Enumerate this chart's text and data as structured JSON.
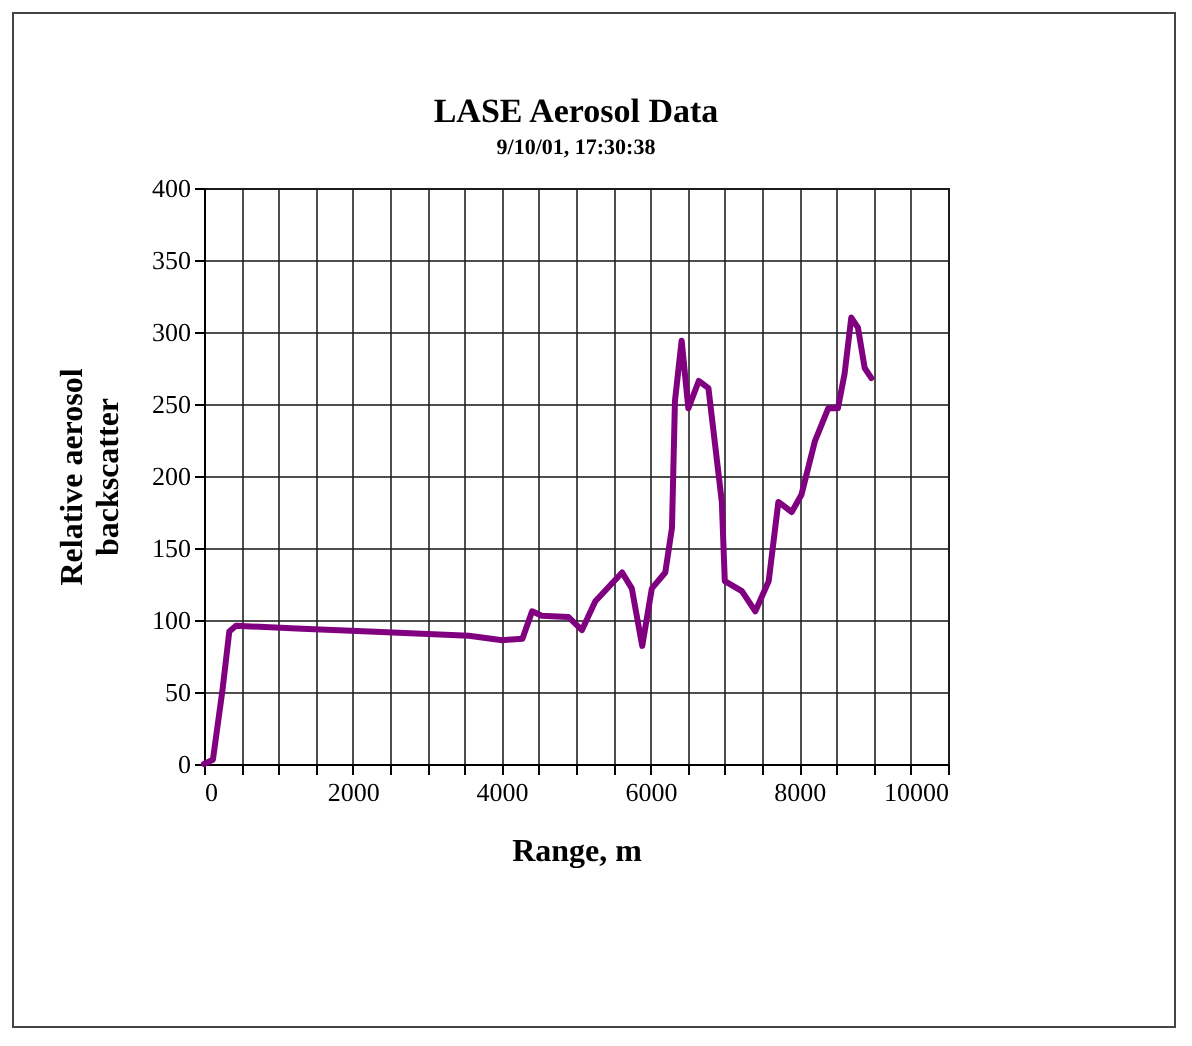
{
  "chart_data": {
    "type": "line",
    "title": "LASE Aerosol Data",
    "subtitle": "9/10/01, 17:30:38",
    "xlabel": "Range, m",
    "ylabel": "Relative aerosol backscatter",
    "x": [
      0,
      120,
      250,
      340,
      430,
      1320,
      2220,
      3560,
      4010,
      4280,
      4410,
      4540,
      4900,
      5080,
      5260,
      5620,
      5750,
      5890,
      6020,
      6200,
      6290,
      6330,
      6420,
      6510,
      6650,
      6780,
      6960,
      7000,
      7230,
      7410,
      7590,
      7720,
      7900,
      8030,
      8210,
      8390,
      8520,
      8610,
      8700,
      8790,
      8880,
      8970
    ],
    "series": [
      {
        "color": "#800080",
        "values": [
          0,
          3,
          52,
          92,
          96,
          94,
          92,
          89,
          86,
          87,
          106,
          103,
          102,
          93,
          113,
          133,
          122,
          82,
          122,
          133,
          164,
          252,
          294,
          247,
          266,
          261,
          182,
          127,
          120,
          106,
          127,
          182,
          175,
          187,
          224,
          247,
          247,
          271,
          310,
          303,
          275,
          268
        ]
      }
    ],
    "xlim": [
      0,
      10000
    ],
    "ylim": [
      0,
      400
    ],
    "xticks": [
      0,
      {
        "value": 500,
        "label": null
      },
      {
        "value": 1000,
        "label": null
      },
      {
        "value": 1500,
        "label": null
      },
      2000,
      {
        "value": 2500,
        "label": null
      },
      {
        "value": 3000,
        "label": null
      },
      {
        "value": 3500,
        "label": null
      },
      4000,
      {
        "value": 4500,
        "label": null
      },
      {
        "value": 5000,
        "label": null
      },
      {
        "value": 5500,
        "label": null
      },
      6000,
      {
        "value": 6500,
        "label": null
      },
      {
        "value": 7000,
        "label": null
      },
      {
        "value": 7500,
        "label": null
      },
      8000,
      {
        "value": 8500,
        "label": null
      },
      {
        "value": 9000,
        "label": null
      },
      {
        "value": 9500,
        "label": null
      },
      10000
    ],
    "yticks": [
      0,
      50,
      100,
      150,
      200,
      250,
      300,
      350,
      400
    ],
    "grid": true,
    "marker": "none",
    "line_style": "solid"
  }
}
